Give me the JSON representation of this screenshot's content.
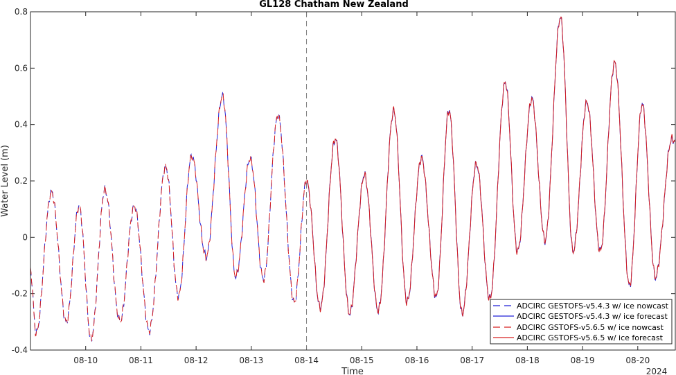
{
  "chart_data": {
    "type": "line",
    "title": "GL128 Chatham New Zealand",
    "xlabel": "Time",
    "ylabel": "Water Level (m)",
    "year_label": "2024",
    "ylim": [
      -0.4,
      0.8
    ],
    "yticks": [
      -0.4,
      -0.2,
      0,
      0.2,
      0.4,
      0.6,
      0.8
    ],
    "ytick_labels": [
      "-0.4",
      "-0.2",
      "0",
      "0.2",
      "0.4",
      "0.6",
      "0.8"
    ],
    "xlim_days": [
      9.0,
      20.68
    ],
    "xticks_days": [
      10,
      11,
      12,
      13,
      14,
      15,
      16,
      17,
      18,
      19,
      20
    ],
    "xtick_labels": [
      "08-10",
      "08-11",
      "08-12",
      "08-13",
      "08-14",
      "08-15",
      "08-16",
      "08-17",
      "08-18",
      "08-19",
      "08-20"
    ],
    "forecast_start_day": 14.0,
    "legend_position": "bottom-right",
    "series": [
      {
        "name": "ADCIRC GESTOFS-v5.4.3 w/ ice nowcast",
        "color": "#1f1fd6",
        "style": "dashed",
        "offset": 0.004
      },
      {
        "name": "ADCIRC GESTOFS-v5.4.3 w/ ice forecast",
        "color": "#1f1fd6",
        "style": "solid",
        "offset": 0.004
      },
      {
        "name": "ADCIRC GSTOFS-v5.6.5 w/ ice nowcast",
        "color": "#d62020",
        "style": "dashed",
        "offset": 0.0
      },
      {
        "name": "ADCIRC GSTOFS-v5.6.5 w/ ice forecast",
        "color": "#d62020",
        "style": "solid",
        "offset": 0.0
      }
    ],
    "extrema": [
      [
        9.0,
        -0.12
      ],
      [
        9.1,
        -0.34
      ],
      [
        9.38,
        0.16
      ],
      [
        9.65,
        -0.3
      ],
      [
        9.88,
        0.11
      ],
      [
        10.1,
        -0.36
      ],
      [
        10.35,
        0.17
      ],
      [
        10.62,
        -0.3
      ],
      [
        10.88,
        0.11
      ],
      [
        11.15,
        -0.33
      ],
      [
        11.45,
        0.25
      ],
      [
        11.68,
        -0.21
      ],
      [
        11.92,
        0.29
      ],
      [
        12.18,
        -0.07
      ],
      [
        12.48,
        0.5
      ],
      [
        12.72,
        -0.14
      ],
      [
        12.98,
        0.28
      ],
      [
        13.22,
        -0.15
      ],
      [
        13.48,
        0.43
      ],
      [
        13.78,
        -0.23
      ],
      [
        14.0,
        0.2
      ],
      [
        14.25,
        -0.25
      ],
      [
        14.52,
        0.35
      ],
      [
        14.78,
        -0.27
      ],
      [
        15.05,
        0.22
      ],
      [
        15.3,
        -0.26
      ],
      [
        15.58,
        0.45
      ],
      [
        15.82,
        -0.23
      ],
      [
        16.08,
        0.28
      ],
      [
        16.35,
        -0.21
      ],
      [
        16.58,
        0.45
      ],
      [
        16.82,
        -0.27
      ],
      [
        17.08,
        0.26
      ],
      [
        17.32,
        -0.22
      ],
      [
        17.6,
        0.55
      ],
      [
        17.82,
        -0.05
      ],
      [
        18.08,
        0.49
      ],
      [
        18.32,
        -0.01
      ],
      [
        18.6,
        0.78
      ],
      [
        18.83,
        -0.05
      ],
      [
        19.08,
        0.48
      ],
      [
        19.32,
        -0.05
      ],
      [
        19.58,
        0.62
      ],
      [
        19.85,
        -0.17
      ],
      [
        20.08,
        0.47
      ],
      [
        20.32,
        -0.14
      ],
      [
        20.62,
        0.35
      ],
      [
        20.68,
        0.34
      ]
    ]
  }
}
